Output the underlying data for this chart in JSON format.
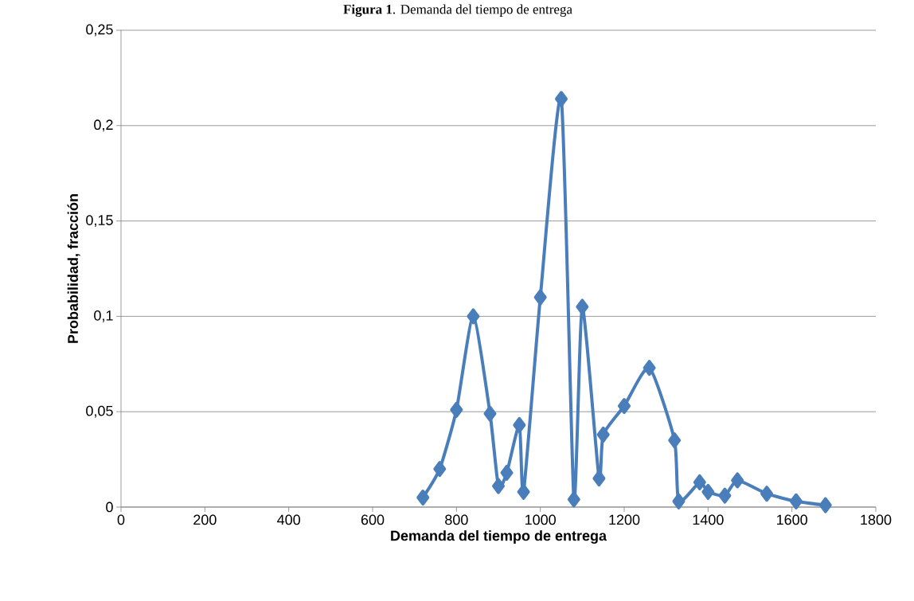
{
  "chart_data": {
    "type": "line",
    "title": "**Figura 1**. Demanda del tiempo de entrega",
    "xlabel": "Demanda del tiempo de entrega",
    "ylabel": "Probabilidad, fracción",
    "x": [
      720,
      760,
      800,
      840,
      880,
      900,
      920,
      950,
      960,
      1000,
      1050,
      1080,
      1100,
      1140,
      1150,
      1200,
      1260,
      1320,
      1330,
      1380,
      1400,
      1440,
      1470,
      1540,
      1610,
      1680
    ],
    "values": [
      0.005,
      0.02,
      0.051,
      0.1,
      0.049,
      0.011,
      0.018,
      0.043,
      0.008,
      0.11,
      0.214,
      0.004,
      0.105,
      0.015,
      0.038,
      0.053,
      0.073,
      0.035,
      0.003,
      0.013,
      0.008,
      0.006,
      0.014,
      0.007,
      0.003,
      0.001
    ],
    "color": "#4a7ebb",
    "marker": "diamond",
    "line_style": "solid",
    "grid": "y",
    "xlim": [
      0,
      1800
    ],
    "xticks": [
      0,
      200,
      400,
      600,
      800,
      1000,
      1200,
      1400,
      1600,
      1800
    ],
    "ylim": [
      0,
      0.25
    ],
    "yticks": [
      {
        "value": 0,
        "label": "0"
      },
      {
        "value": 0.05,
        "label": "0,05"
      },
      {
        "value": 0.1,
        "label": "0,1"
      },
      {
        "value": 0.15,
        "label": "0,15"
      },
      {
        "value": 0.2,
        "label": "0,2"
      },
      {
        "value": 0.25,
        "label": "0,25"
      }
    ]
  }
}
